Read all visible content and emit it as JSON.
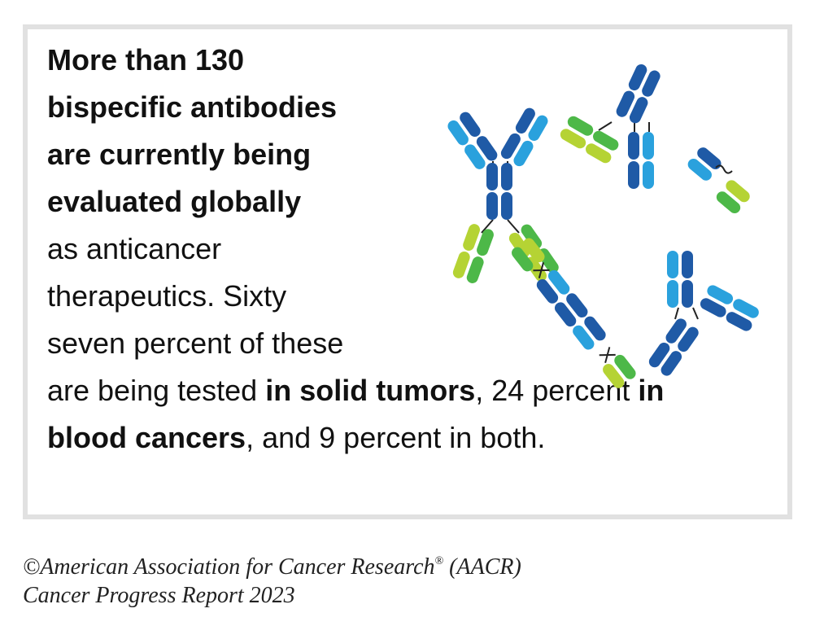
{
  "infographic": {
    "lines": [
      {
        "segments": [
          {
            "text": "More than 130",
            "bold": true
          }
        ]
      },
      {
        "segments": [
          {
            "text": "bispecific antibodies",
            "bold": true
          }
        ]
      },
      {
        "segments": [
          {
            "text": "are currently being",
            "bold": true
          }
        ]
      },
      {
        "segments": [
          {
            "text": "evaluated globally",
            "bold": true
          }
        ]
      },
      {
        "segments": [
          {
            "text": "as anticancer",
            "bold": false
          }
        ]
      },
      {
        "segments": [
          {
            "text": "therapeutics. Sixty",
            "bold": false
          }
        ]
      },
      {
        "segments": [
          {
            "text": "seven percent of these",
            "bold": false
          }
        ]
      },
      {
        "segments": [
          {
            "text": "are being tested ",
            "bold": false
          },
          {
            "text": "in solid tumors",
            "bold": true
          },
          {
            "text": ", 24 percent ",
            "bold": false
          },
          {
            "text": "in",
            "bold": true
          }
        ]
      },
      {
        "segments": [
          {
            "text": "blood cancers",
            "bold": true
          },
          {
            "text": ", and 9 percent in both.",
            "bold": false
          }
        ]
      }
    ]
  },
  "footer": {
    "line1_prefix": "©American Association for Cancer Research",
    "line1_reg": "®",
    "line1_suffix": " (AACR)",
    "line2": "Cancer Progress Report 2023"
  },
  "colors": {
    "dark_blue": "#1f5aa6",
    "light_blue": "#2aa1dd",
    "dark_green": "#4db848",
    "light_green": "#b5d334",
    "border": "#e1e1e1",
    "linker": "#222222"
  }
}
